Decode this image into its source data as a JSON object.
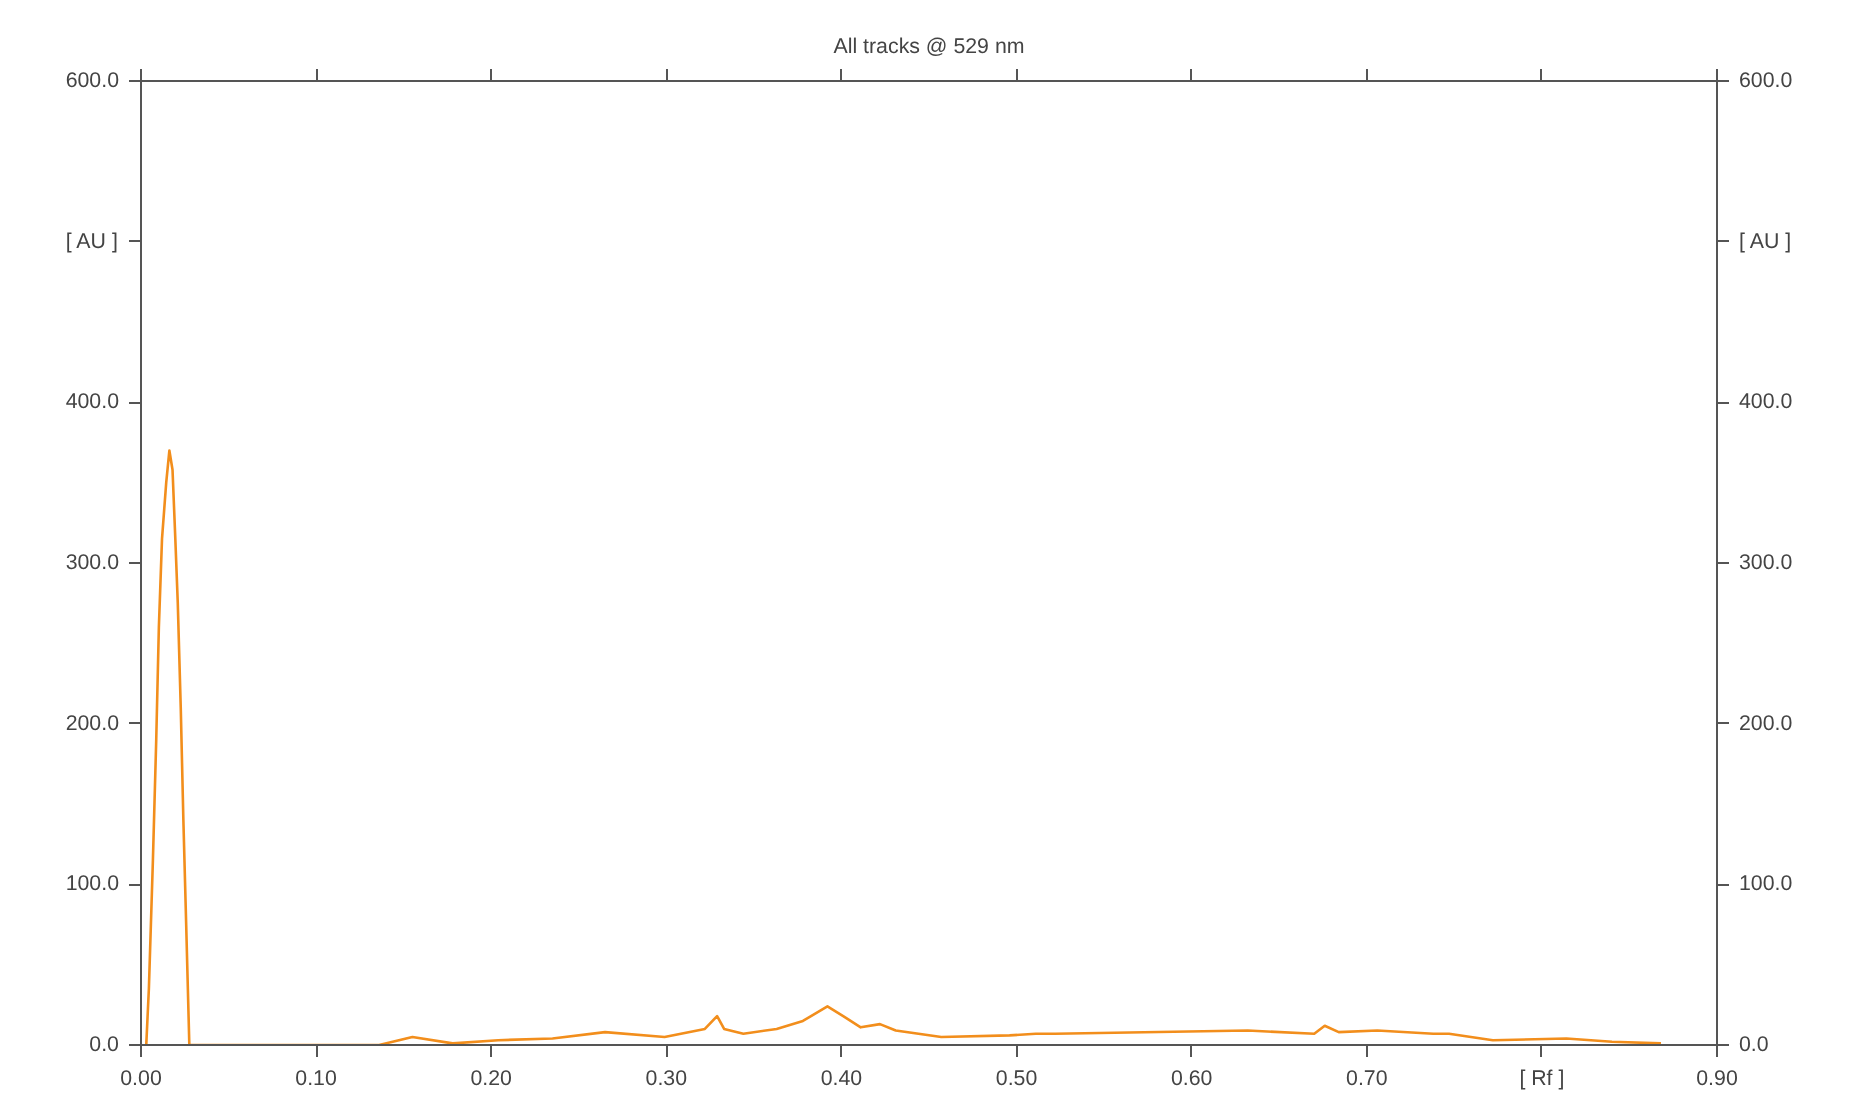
{
  "chart_data": {
    "type": "line",
    "title": "All tracks @ 529 nm",
    "xlim": [
      0,
      0.9
    ],
    "xticks": [
      {
        "value": 0,
        "label": "0.00"
      },
      {
        "value": 0.1,
        "label": "0.10"
      },
      {
        "value": 0.2,
        "label": "0.20"
      },
      {
        "value": 0.3,
        "label": "0.30"
      },
      {
        "value": 0.4,
        "label": "0.40"
      },
      {
        "value": 0.5,
        "label": "0.50"
      },
      {
        "value": 0.6,
        "label": "0.60"
      },
      {
        "value": 0.7,
        "label": "0.70"
      },
      {
        "value": 0.8,
        "label": "[ Rf ]"
      },
      {
        "value": 0.9,
        "label": "0.90"
      }
    ],
    "ylim": [
      0,
      600
    ],
    "yticks": [
      {
        "value": 0,
        "label": "0.0"
      },
      {
        "value": 100,
        "label": "100.0"
      },
      {
        "value": 200,
        "label": "200.0"
      },
      {
        "value": 300,
        "label": "300.0"
      },
      {
        "value": 400,
        "label": "400.0"
      },
      {
        "value": 500,
        "label": "[ AU ]"
      },
      {
        "value": 600,
        "label": "600.0"
      }
    ],
    "y2lim": [
      0,
      600
    ],
    "y2ticks": [
      {
        "value": 0,
        "label": "0.0"
      },
      {
        "value": 100,
        "label": "100.0"
      },
      {
        "value": 200,
        "label": "200.0"
      },
      {
        "value": 300,
        "label": "300.0"
      },
      {
        "value": 400,
        "label": "400.0"
      },
      {
        "value": 500,
        "label": "[ AU ]"
      },
      {
        "value": 600,
        "label": "600.0"
      }
    ],
    "grid": false,
    "series": [
      {
        "color": "#f28e1c",
        "x": [
          0.003,
          0.0045,
          0.0068,
          0.0087,
          0.0102,
          0.012,
          0.0144,
          0.0162,
          0.018,
          0.0196,
          0.021,
          0.0227,
          0.0242,
          0.0258,
          0.0276,
          0.136,
          0.155,
          0.178,
          0.204,
          0.235,
          0.265,
          0.299,
          0.322,
          0.329,
          0.333,
          0.344,
          0.363,
          0.378,
          0.392,
          0.401,
          0.411,
          0.422,
          0.431,
          0.457,
          0.496,
          0.511,
          0.522,
          0.632,
          0.67,
          0.676,
          0.684,
          0.706,
          0.738,
          0.747,
          0.772,
          0.814,
          0.84,
          0.868
        ],
        "values": [
          0,
          35,
          115,
          190,
          260,
          315,
          350,
          370,
          358,
          315,
          275,
          210,
          140,
          75,
          0,
          0,
          5,
          1,
          3,
          4,
          8,
          5,
          10,
          18,
          10,
          7,
          10,
          15,
          24,
          18,
          11,
          13,
          9,
          5,
          6,
          7,
          7,
          9,
          7,
          12,
          8,
          9,
          7,
          7,
          3,
          4,
          2,
          1
        ]
      }
    ]
  }
}
